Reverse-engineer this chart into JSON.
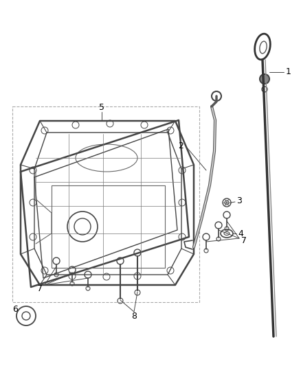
{
  "background_color": "#ffffff",
  "line_color": "#444444",
  "label_color": "#000000",
  "figsize": [
    4.38,
    5.33
  ],
  "dpi": 100
}
